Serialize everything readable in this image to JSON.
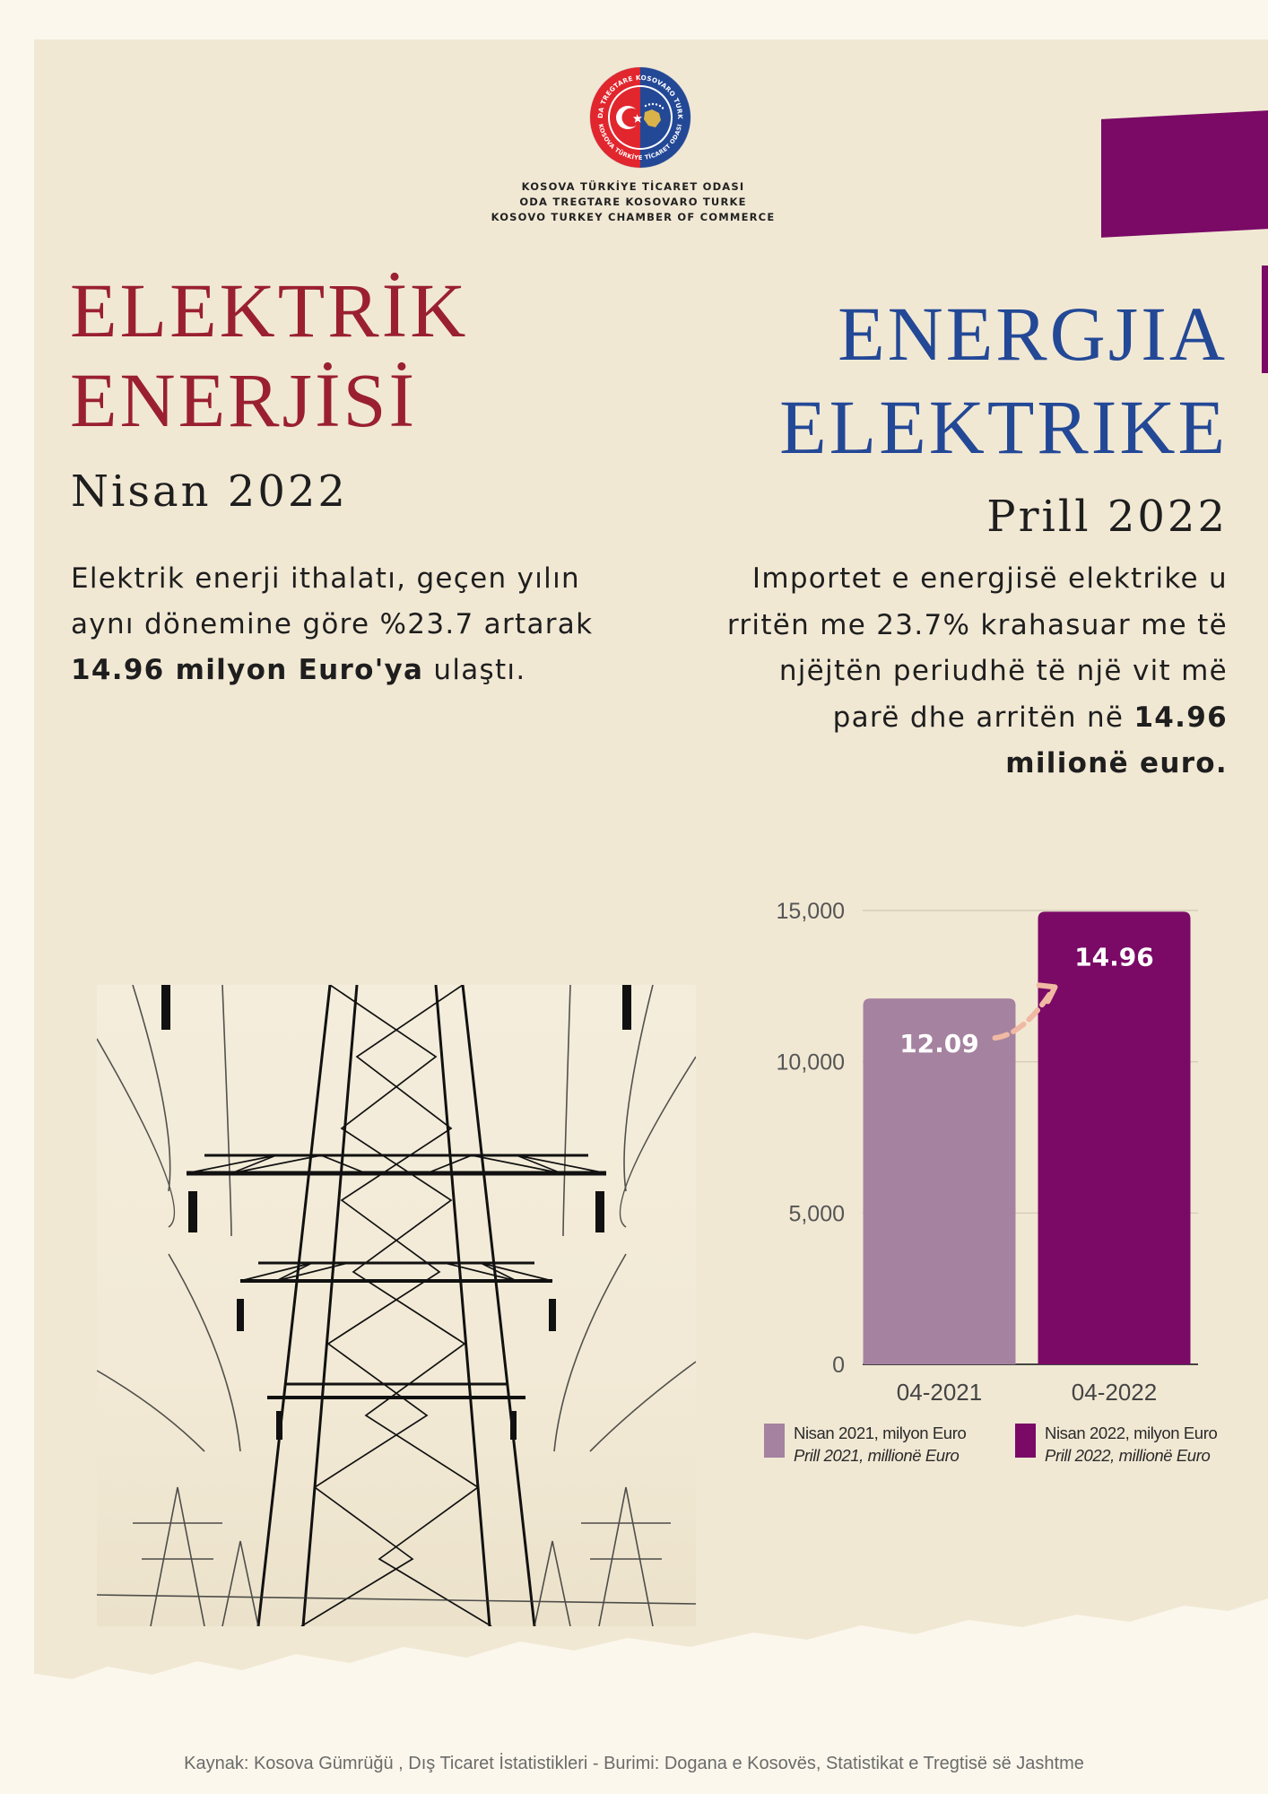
{
  "colors": {
    "background": "#fbf7ec",
    "panel": "#f1e8d4",
    "turkish_title": "#9a2030",
    "albanian_title": "#234896",
    "accent_purple": "#7a0a66",
    "bar_2021": "#a5829f",
    "bar_2022": "#7a0a66",
    "arrow": "#f0b9a3"
  },
  "logo": {
    "icon": "chamber-seal-logo",
    "ring_text_top": "ODA TREGTARE KOSOVARO TURKE",
    "ring_text_bottom": "KOSOVA TÜRKİYE TİCARET ODASI"
  },
  "organization": {
    "name_tr": "KOSOVA TÜRKİYE TİCARET ODASI",
    "name_sq": "ODA TREGTARE KOSOVARO TURKE",
    "name_en": "KOSOVO TURKEY CHAMBER OF COMMERCE"
  },
  "turkish": {
    "title_line1": "ELEKTRİK",
    "title_line2": "ENERJİSİ",
    "date": "Nisan 2022",
    "body_part1": "Elektrik enerji ithalatı, geçen yılın aynı dönemine göre %23.7 artarak ",
    "body_bold": "14.96 milyon Euro'ya",
    "body_part2": " ulaştı."
  },
  "albanian": {
    "title_line1": "ENERGJIA",
    "title_line2": "ELEKTRIKE",
    "date": "Prill 2022",
    "body_part1": "Importet e energjisë elektrike u rritën me 23.7% krahasuar me të njëjtën periudhë të një vit më parë dhe arritën në ",
    "body_bold": "14.96 milionë euro."
  },
  "image": {
    "icon": "electricity-pylons-illustration"
  },
  "chart_data": {
    "type": "bar",
    "categories": [
      "04-2021",
      "04-2022"
    ],
    "values": [
      12090,
      14960
    ],
    "data_labels": [
      "12.09",
      "14.96"
    ],
    "ylim": [
      0,
      15000
    ],
    "yticks": [
      0,
      5000,
      10000,
      15000
    ],
    "ytick_labels": [
      "0",
      "5,000",
      "10,000",
      "15,000"
    ],
    "grid": true,
    "title": "",
    "xlabel": "",
    "ylabel": "",
    "series": [
      {
        "name": "Nisan 2021, milyon Euro / Prill 2021, millionë Euro",
        "color": "#a5829f"
      },
      {
        "name": "Nisan 2022, milyon Euro / Prill 2022, millionë Euro",
        "color": "#7a0a66"
      }
    ],
    "annotation": "arrow-from-2021-to-2022",
    "legend_placement": "bottom"
  },
  "legend": [
    {
      "line1": "Nisan 2021, milyon Euro",
      "line2": "Prill 2021, millionë Euro"
    },
    {
      "line1": "Nisan 2022, milyon Euro",
      "line2": "Prill 2022, millionë Euro"
    }
  ],
  "source": "Kaynak: Kosova Gümrüğü ,  Dış Ticaret İstatistikleri -   Burimi: Dogana e Kosovës, Statistikat e Tregtisë së Jashtme"
}
